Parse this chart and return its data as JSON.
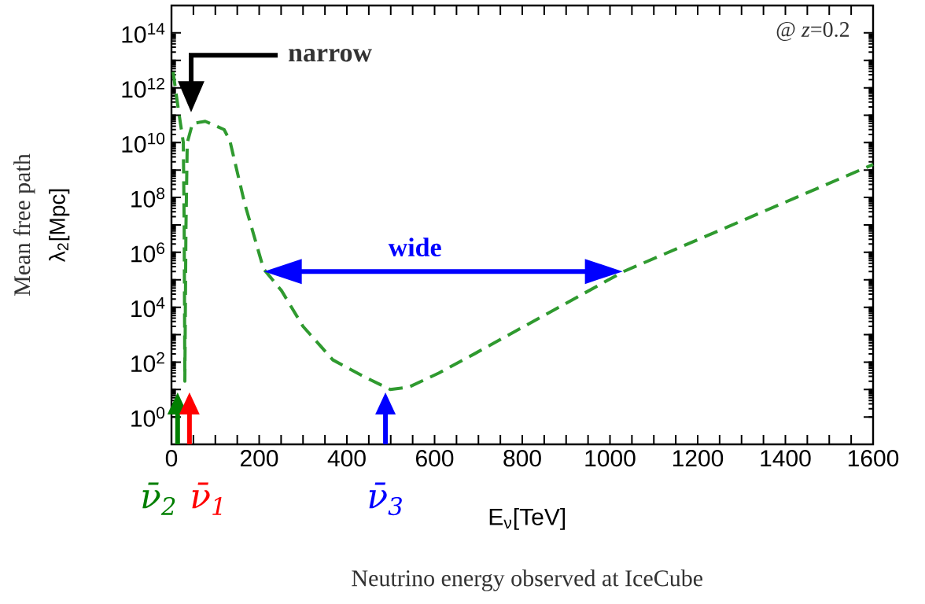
{
  "chart_data": {
    "type": "line",
    "xlabel": "E$_{ν}$[TeV]",
    "ylabel": "λ$_{2}$[Mpc]",
    "x": [
      3.6,
      14,
      27,
      29,
      30.5,
      33,
      36,
      48,
      77,
      120,
      133,
      167,
      210,
      251,
      300,
      368,
      438,
      499,
      540,
      610,
      691,
      1031,
      1600
    ],
    "series": [
      {
        "color": "#2f9a2f",
        "line_style": "dashed",
        "values": [
          3800000000000.0,
          250000000000.0,
          10000000000.0,
          8000000.0,
          20,
          8000000.0,
          10000000000.0,
          50000000000.0,
          60000000000.0,
          30000000000.0,
          12000000000.0,
          60000000.0,
          250000.0,
          40000.0,
          2000.0,
          120.0,
          30,
          10,
          12,
          40,
          200.0,
          200000.0,
          1600000000.0
        ]
      }
    ],
    "log": "y",
    "xlim": [
      0,
      1600
    ],
    "ylim": [
      0.1,
      1000000000000000.0
    ],
    "xticks": [
      0,
      {
        "value": 50,
        "label": null
      },
      {
        "value": 100,
        "label": null
      },
      {
        "value": 150,
        "label": null
      },
      200,
      {
        "value": 250,
        "label": null
      },
      {
        "value": 300,
        "label": null
      },
      {
        "value": 350,
        "label": null
      },
      400,
      {
        "value": 450,
        "label": null
      },
      {
        "value": 500,
        "label": null
      },
      {
        "value": 550,
        "label": null
      },
      600,
      {
        "value": 650,
        "label": null
      },
      {
        "value": 700,
        "label": null
      },
      {
        "value": 750,
        "label": null
      },
      800,
      {
        "value": 850,
        "label": null
      },
      {
        "value": 900,
        "label": null
      },
      {
        "value": 950,
        "label": null
      },
      1000,
      {
        "value": 1050,
        "label": null
      },
      {
        "value": 1100,
        "label": null
      },
      {
        "value": 1150,
        "label": null
      },
      1200,
      {
        "value": 1250,
        "label": null
      },
      {
        "value": 1300,
        "label": null
      },
      {
        "value": 1350,
        "label": null
      },
      1400,
      {
        "value": 1450,
        "label": null
      },
      {
        "value": 1500,
        "label": null
      },
      {
        "value": 1550,
        "label": null
      },
      1600
    ],
    "yticks": [
      {
        "value": 1,
        "label": "10$^{0}$"
      },
      {
        "value": 10,
        "label": null
      },
      {
        "value": 100,
        "label": "10$^{2}$"
      },
      {
        "value": 1000,
        "label": null
      },
      {
        "value": 10000.0,
        "label": "10$^{4}$"
      },
      {
        "value": 100000.0,
        "label": null
      },
      {
        "value": 1000000.0,
        "label": "10$^{6}$"
      },
      {
        "value": 10000000.0,
        "label": null
      },
      {
        "value": 100000000.0,
        "label": "10$^{8}$"
      },
      {
        "value": 1000000000.0,
        "label": null
      },
      {
        "value": 10000000000.0,
        "label": "10$^{10}$"
      },
      {
        "value": 100000000000.0,
        "label": null
      },
      {
        "value": 1000000000000.0,
        "label": "10$^{12}$"
      },
      {
        "value": 10000000000000.0,
        "label": null
      },
      {
        "value": 100000000000000.0,
        "label": "10$^{14}$"
      }
    ],
    "ref_lines": [
      {
        "axis": "x",
        "value": 14,
        "label": "ν̄$_{2}$",
        "color": "#007f00"
      },
      {
        "axis": "x",
        "value": 41,
        "label": "ν̄$_{1}$",
        "color": "#ff0000"
      },
      {
        "axis": "x",
        "value": 488,
        "label": "ν̄$_{3}$",
        "color": "#0000ff"
      }
    ],
    "annotations": [
      "narrow",
      "wide",
      "@ *z*=0.2",
      "Mean free path",
      "Neutrino energy observed at IceCube"
    ]
  }
}
